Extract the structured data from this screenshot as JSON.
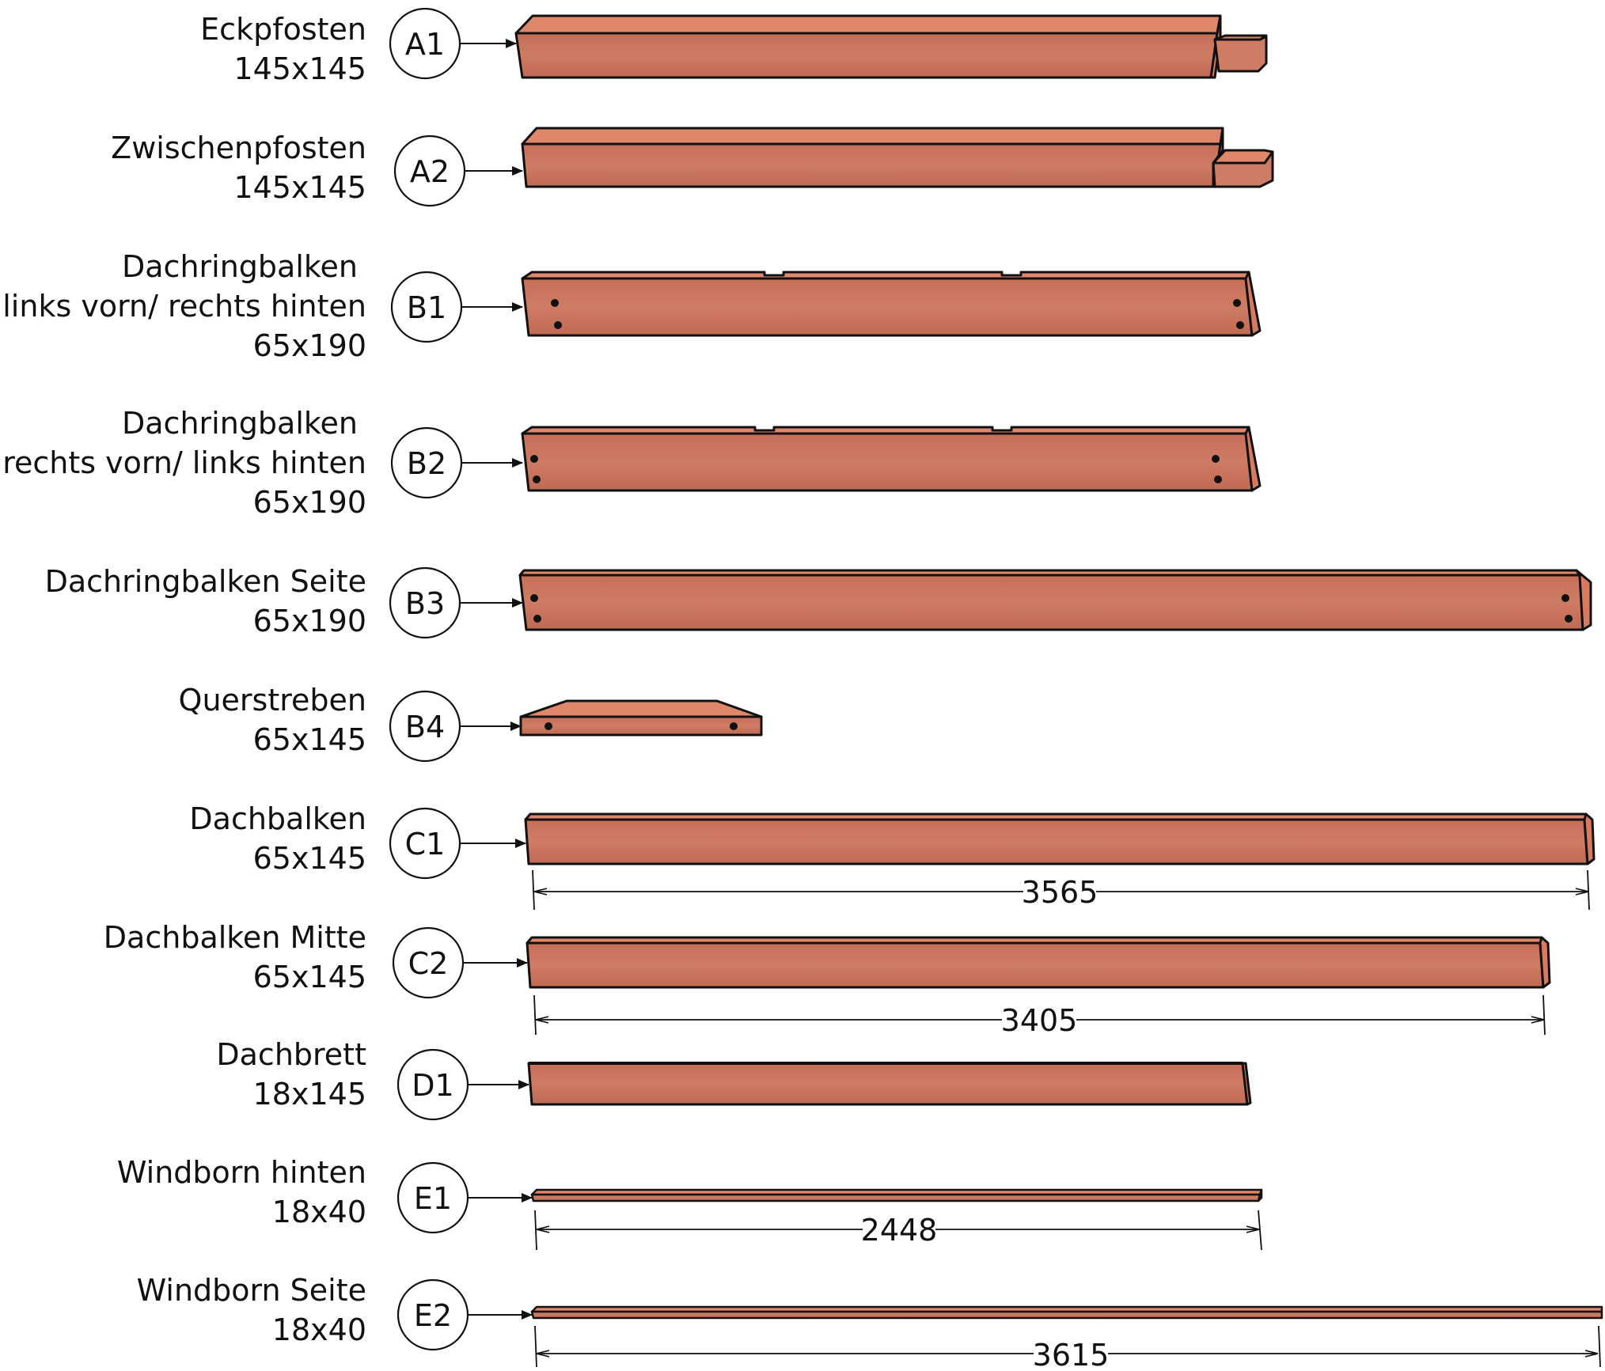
{
  "parts": [
    {
      "id": "A1",
      "label_lines": [
        "Eckpfosten",
        "145x145"
      ],
      "shape": "post-tenon-right"
    },
    {
      "id": "A2",
      "label_lines": [
        "Zwischenpfosten",
        "145x145"
      ],
      "shape": "post-tenon-right-notch"
    },
    {
      "id": "B1",
      "label_lines": [
        "Dachringbalken",
        "links vorn/ rechts hinten",
        "65x190"
      ],
      "shape": "ring-beam-notched"
    },
    {
      "id": "B2",
      "label_lines": [
        "Dachringbalken",
        "rechts vorn/ links hinten",
        "65x190"
      ],
      "shape": "ring-beam-notched"
    },
    {
      "id": "B3",
      "label_lines": [
        "Dachringbalken Seite",
        "65x190"
      ],
      "shape": "ring-beam-long"
    },
    {
      "id": "B4",
      "label_lines": [
        "Querstreben",
        "65x145"
      ],
      "shape": "brace"
    },
    {
      "id": "C1",
      "label_lines": [
        "Dachbalken",
        "65x145"
      ],
      "shape": "rafter",
      "dimension": "3565"
    },
    {
      "id": "C2",
      "label_lines": [
        "Dachbalken Mitte",
        "65x145"
      ],
      "shape": "rafter",
      "dimension": "3405"
    },
    {
      "id": "D1",
      "label_lines": [
        "Dachbrett",
        "18x145"
      ],
      "shape": "board"
    },
    {
      "id": "E1",
      "label_lines": [
        "Windborn hinten",
        "18x40"
      ],
      "shape": "strip",
      "dimension": "2448"
    },
    {
      "id": "E2",
      "label_lines": [
        "Windborn Seite",
        "18x40"
      ],
      "shape": "strip",
      "dimension": "3615"
    }
  ],
  "colors": {
    "wood_front": "#c9735c",
    "wood_top": "#e0866a",
    "wood_end": "#d77a60",
    "outline": "#111111"
  }
}
